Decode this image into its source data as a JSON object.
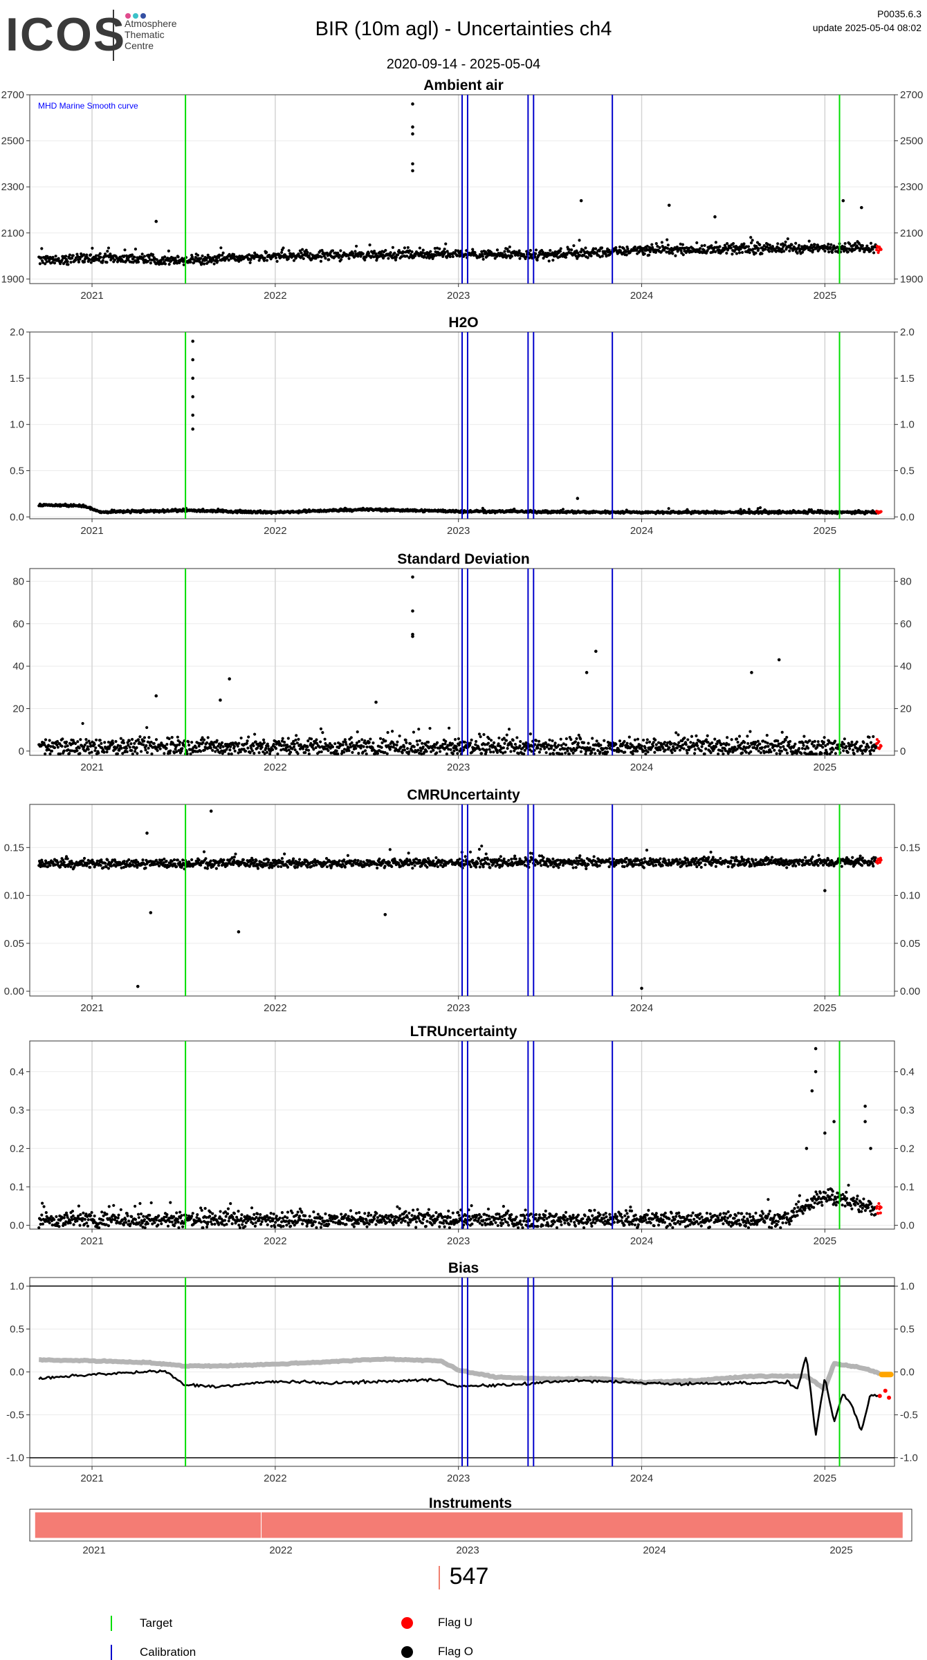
{
  "header": {
    "logo_text": "ICOS",
    "logo_subtitle": "Atmosphere\nThematic\nCentre",
    "logo_dot_colors": [
      "#e04b8d",
      "#3cc1c8",
      "#3550a3"
    ],
    "title": "BIR  (10m agl) - Uncertainties ch4",
    "date_range": "2020-09-14 - 2025-05-04",
    "version": "P0035.6.3",
    "update": "update  2025-05-04 08:02"
  },
  "colors": {
    "points": "#000000",
    "target": "#00dd00",
    "calibration": "#0000cc",
    "flag_u": "#ff0000",
    "flag_o": "#000000",
    "bias_ref": "#b4b4b4",
    "bias_flag": "#ffa500",
    "instrument_bar": "#f47c74"
  },
  "chart_data": [
    {
      "type": "scatter",
      "title": "Ambient air",
      "annotation": "MHD Marine Smooth curve",
      "ylim": [
        1880,
        2700
      ],
      "yticks": [
        1900,
        2100,
        2300,
        2500,
        2700
      ],
      "ytick_labels": [
        "1900",
        "2100",
        "2300",
        "2500",
        "2700"
      ],
      "x_labels": [
        "2021",
        "2022",
        "2023",
        "2024",
        "2025"
      ],
      "grid": true,
      "series": [
        {
          "baseline": [
            [
              2020.71,
              1985
            ],
            [
              2021.2,
              1990
            ],
            [
              2021.5,
              1980
            ],
            [
              2022.0,
              2000
            ],
            [
              2022.5,
              2005
            ],
            [
              2023.0,
              2010
            ],
            [
              2023.4,
              2000
            ],
            [
              2024.0,
              2025
            ],
            [
              2024.5,
              2030
            ],
            [
              2025.0,
              2035
            ],
            [
              2025.3,
              2035
            ]
          ],
          "noise": 30,
          "spikes": [
            [
              2022.75,
              2660
            ],
            [
              2022.75,
              2560
            ],
            [
              2022.75,
              2530
            ],
            [
              2022.75,
              2400
            ],
            [
              2022.75,
              2370
            ],
            [
              2023.67,
              2240
            ],
            [
              2024.15,
              2220
            ],
            [
              2025.1,
              2240
            ],
            [
              2025.2,
              2210
            ],
            [
              2021.35,
              2150
            ],
            [
              2024.4,
              2170
            ]
          ]
        }
      ]
    },
    {
      "type": "scatter",
      "title": "H2O",
      "ylim": [
        -0.02,
        2.0
      ],
      "yticks": [
        0,
        0.5,
        1.0,
        1.5,
        2.0
      ],
      "ytick_labels": [
        "0.0",
        "0.5",
        "1.0",
        "1.5",
        "2.0"
      ],
      "x_labels": [
        "2021",
        "2022",
        "2023",
        "2024",
        "2025"
      ],
      "grid": true,
      "series": [
        {
          "baseline": [
            [
              2020.71,
              0.13
            ],
            [
              2020.95,
              0.12
            ],
            [
              2021.05,
              0.05
            ],
            [
              2021.5,
              0.07
            ],
            [
              2022.0,
              0.05
            ],
            [
              2022.5,
              0.08
            ],
            [
              2023.0,
              0.06
            ],
            [
              2024.0,
              0.05
            ],
            [
              2025.0,
              0.05
            ],
            [
              2025.3,
              0.05
            ]
          ],
          "noise": 0.02,
          "spikes": [
            [
              2021.55,
              1.9
            ],
            [
              2021.55,
              1.7
            ],
            [
              2021.55,
              1.5
            ],
            [
              2021.55,
              1.3
            ],
            [
              2021.55,
              1.1
            ],
            [
              2021.55,
              0.95
            ],
            [
              2023.65,
              0.2
            ]
          ]
        }
      ]
    },
    {
      "type": "scatter",
      "title": "Standard Deviation",
      "ylim": [
        -2,
        86
      ],
      "yticks": [
        0,
        20,
        40,
        60,
        80
      ],
      "ytick_labels": [
        "0",
        "20",
        "40",
        "60",
        "80"
      ],
      "x_labels": [
        "2021",
        "2022",
        "2023",
        "2024",
        "2025"
      ],
      "grid": true,
      "series": [
        {
          "baseline": [
            [
              2020.71,
              2
            ],
            [
              2025.3,
              2
            ]
          ],
          "noise": 6,
          "spikes": [
            [
              2022.75,
              82
            ],
            [
              2022.75,
              66
            ],
            [
              2022.75,
              55
            ],
            [
              2022.75,
              54
            ],
            [
              2023.75,
              47
            ],
            [
              2024.75,
              43
            ],
            [
              2024.6,
              37
            ],
            [
              2023.7,
              37
            ],
            [
              2021.75,
              34
            ],
            [
              2021.35,
              26
            ],
            [
              2021.7,
              24
            ],
            [
              2022.55,
              23
            ]
          ]
        }
      ]
    },
    {
      "type": "scatter",
      "title": "CMRUncertainty",
      "ylim": [
        -0.005,
        0.195
      ],
      "yticks": [
        0,
        0.05,
        0.1,
        0.15
      ],
      "ytick_labels": [
        "0.00",
        "0.05",
        "0.10",
        "0.15"
      ],
      "x_labels": [
        "2021",
        "2022",
        "2023",
        "2024",
        "2025"
      ],
      "grid": true,
      "series": [
        {
          "baseline": [
            [
              2020.71,
              0.133
            ],
            [
              2025.3,
              0.135
            ]
          ],
          "noise": 0.007,
          "spikes": [
            [
              2021.65,
              0.188
            ],
            [
              2021.3,
              0.165
            ],
            [
              2021.32,
              0.082
            ],
            [
              2021.8,
              0.062
            ],
            [
              2022.6,
              0.08
            ],
            [
              2021.25,
              0.005
            ],
            [
              2024.0,
              0.003
            ],
            [
              2025.0,
              0.105
            ]
          ]
        }
      ]
    },
    {
      "type": "scatter",
      "title": "LTRUncertainty",
      "ylim": [
        -0.01,
        0.48
      ],
      "yticks": [
        0,
        0.1,
        0.2,
        0.3,
        0.4
      ],
      "ytick_labels": [
        "0.0",
        "0.1",
        "0.2",
        "0.3",
        "0.4"
      ],
      "x_labels": [
        "2021",
        "2022",
        "2023",
        "2024",
        "2025"
      ],
      "grid": true,
      "series": [
        {
          "baseline": [
            [
              2020.71,
              0.015
            ],
            [
              2024.8,
              0.015
            ],
            [
              2025.0,
              0.08
            ],
            [
              2025.3,
              0.04
            ]
          ],
          "noise": 0.03,
          "spikes": [
            [
              2024.95,
              0.46
            ],
            [
              2024.95,
              0.4
            ],
            [
              2024.93,
              0.35
            ],
            [
              2025.05,
              0.27
            ],
            [
              2025.22,
              0.31
            ],
            [
              2025.22,
              0.27
            ],
            [
              2025.0,
              0.24
            ],
            [
              2025.25,
              0.2
            ],
            [
              2024.9,
              0.2
            ]
          ]
        }
      ]
    },
    {
      "type": "line",
      "title": "Bias",
      "ylim": [
        -1.1,
        1.1
      ],
      "yticks": [
        -1.0,
        -0.5,
        0,
        0.5,
        1.0
      ],
      "ytick_labels": [
        "-1.0",
        "-0.5",
        "0.0",
        "0.5",
        "1.0"
      ],
      "x_labels": [
        "2021",
        "2022",
        "2023",
        "2024",
        "2025"
      ],
      "grid": true,
      "hlines": [
        -1.0,
        1.0
      ],
      "series": [
        {
          "role": "reference",
          "values": [
            [
              2020.71,
              0.14
            ],
            [
              2021.0,
              0.13
            ],
            [
              2021.3,
              0.11
            ],
            [
              2021.5,
              0.07
            ],
            [
              2021.7,
              0.07
            ],
            [
              2022.0,
              0.09
            ],
            [
              2022.3,
              0.12
            ],
            [
              2022.6,
              0.15
            ],
            [
              2022.9,
              0.13
            ],
            [
              2023.0,
              0.02
            ],
            [
              2023.2,
              -0.06
            ],
            [
              2023.5,
              -0.08
            ],
            [
              2023.8,
              -0.08
            ],
            [
              2024.0,
              -0.12
            ],
            [
              2024.3,
              -0.1
            ],
            [
              2024.6,
              -0.05
            ],
            [
              2024.9,
              -0.05
            ],
            [
              2025.0,
              -0.2
            ],
            [
              2025.05,
              0.1
            ],
            [
              2025.2,
              0.05
            ],
            [
              2025.3,
              -0.02
            ]
          ]
        },
        {
          "role": "measured",
          "values": [
            [
              2020.71,
              -0.08
            ],
            [
              2021.0,
              -0.03
            ],
            [
              2021.4,
              0.01
            ],
            [
              2021.5,
              -0.15
            ],
            [
              2021.7,
              -0.17
            ],
            [
              2022.0,
              -0.11
            ],
            [
              2022.3,
              -0.13
            ],
            [
              2022.6,
              -0.11
            ],
            [
              2022.9,
              -0.09
            ],
            [
              2023.0,
              -0.17
            ],
            [
              2023.3,
              -0.15
            ],
            [
              2023.6,
              -0.1
            ],
            [
              2023.9,
              -0.12
            ],
            [
              2024.2,
              -0.14
            ],
            [
              2024.5,
              -0.13
            ],
            [
              2024.8,
              -0.12
            ],
            [
              2024.85,
              -0.2
            ],
            [
              2024.9,
              0.2
            ],
            [
              2024.95,
              -0.75
            ],
            [
              2025.0,
              -0.05
            ],
            [
              2025.05,
              -0.6
            ],
            [
              2025.1,
              -0.25
            ],
            [
              2025.15,
              -0.4
            ],
            [
              2025.2,
              -0.7
            ],
            [
              2025.25,
              -0.25
            ],
            [
              2025.3,
              -0.3
            ]
          ]
        }
      ]
    },
    {
      "type": "bar",
      "title": "Instruments",
      "x_labels": [
        "2021",
        "2022",
        "2023",
        "2024",
        "2025"
      ],
      "segments": [
        [
          2020.71,
          2021.92
        ],
        [
          2021.92,
          2025.35
        ]
      ]
    }
  ],
  "events": {
    "target": [
      2021.51,
      2025.08
    ],
    "calibration": [
      2023.02,
      2023.05,
      2023.38,
      2023.41,
      2023.84
    ]
  },
  "legend": {
    "count": "547",
    "target_label": "Target",
    "calibration_label": "Calibration",
    "flag_u_label": "Flag U",
    "flag_o_label": "Flag O"
  }
}
